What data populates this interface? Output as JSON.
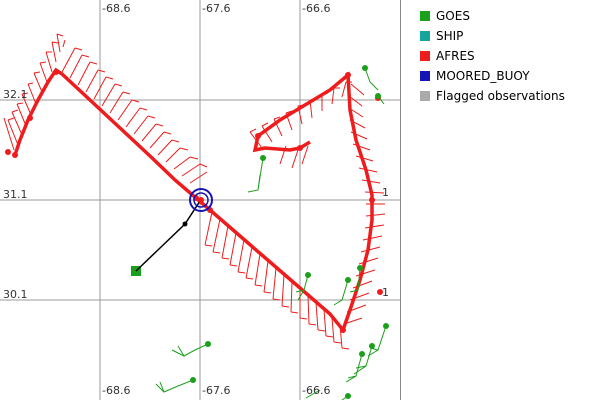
{
  "map": {
    "lon_labels_top": [
      "-68.6",
      "-67.6",
      "-66.6"
    ],
    "lon_labels_bottom": [
      "-68.6",
      "-67.6",
      "-66.6"
    ],
    "lat_labels": [
      "32.1",
      "31.1",
      "30.1"
    ],
    "lat_labels_right": [
      "1",
      "1"
    ],
    "lon_values": [
      -68.6,
      -67.6,
      -66.6
    ],
    "lat_values": [
      32.1,
      31.1,
      30.1
    ],
    "lon_range": [
      -69.6,
      -65.6
    ],
    "lat_range": [
      29.1,
      33.1
    ]
  },
  "legend": {
    "items": [
      {
        "label": "GOES",
        "color": "#1aa01a"
      },
      {
        "label": "SHIP",
        "color": "#16a59a"
      },
      {
        "label": "AFRES",
        "color": "#ee1c1c"
      },
      {
        "label": "MOORED_BUOY",
        "color": "#1515b5"
      },
      {
        "label": "Flagged observations",
        "color": "#aaaaaa"
      }
    ]
  },
  "colors": {
    "afres": "#ee1c1c",
    "goes": "#1aa01a",
    "buoy": "#1515b5",
    "track": "#000000",
    "grid": "#999999"
  }
}
